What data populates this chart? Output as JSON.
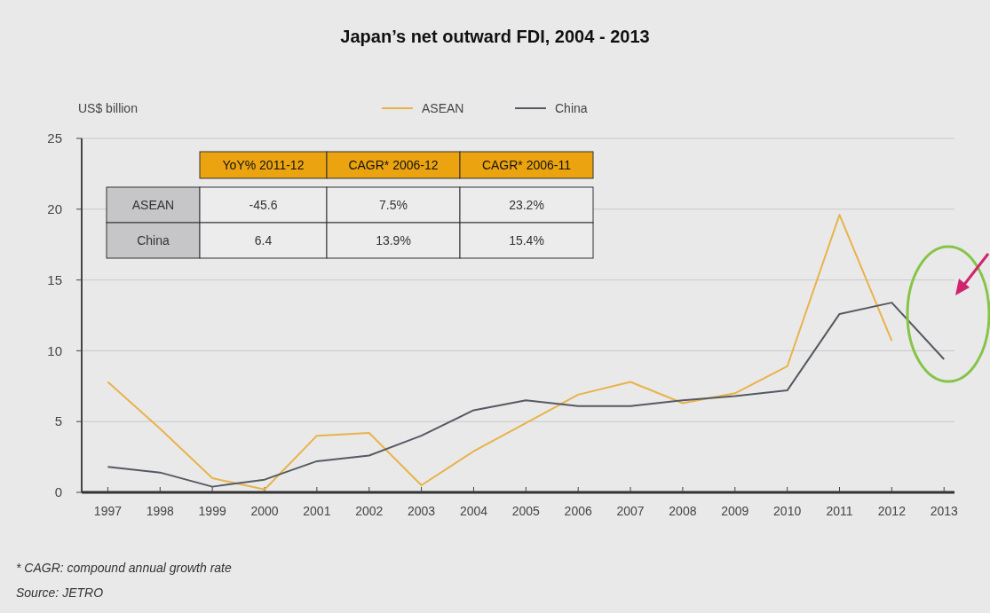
{
  "chart_data": {
    "type": "line",
    "title": "Japan’s net outward FDI,  2004 - 2013",
    "ylabel": "US$ billion",
    "x": [
      1997,
      1998,
      1999,
      2000,
      2001,
      2002,
      2003,
      2004,
      2005,
      2006,
      2007,
      2008,
      2009,
      2010,
      2011,
      2012,
      2013
    ],
    "series": [
      {
        "name": "ASEAN",
        "color": "#e8b34a",
        "values": [
          7.8,
          4.5,
          1.0,
          0.2,
          4.0,
          4.2,
          0.5,
          2.9,
          4.9,
          6.9,
          7.8,
          6.3,
          7.0,
          8.9,
          19.6,
          10.7,
          null
        ]
      },
      {
        "name": "China",
        "color": "#555a62",
        "values": [
          1.8,
          1.4,
          0.4,
          0.9,
          2.2,
          2.6,
          4.0,
          5.8,
          6.5,
          6.1,
          6.1,
          6.5,
          6.8,
          7.2,
          12.6,
          13.4,
          9.4
        ]
      }
    ],
    "xlim": [
      1996.5,
      2013.2
    ],
    "xticks": [
      1997,
      1998,
      1999,
      2000,
      2001,
      2002,
      2003,
      2004,
      2005,
      2006,
      2007,
      2008,
      2009,
      2010,
      2011,
      2012,
      2013
    ],
    "ylim": [
      0,
      25
    ],
    "yticks": [
      0,
      5,
      10,
      15,
      20,
      25
    ],
    "grid": "y",
    "legend": "top",
    "marker": "none",
    "line_style": "solid",
    "annotations": [
      "YoY% 2011-12",
      "CAGR* 2006-12",
      "CAGR* 2006-11",
      "ASEAN",
      "-45.6",
      "7.5%",
      "23.2%",
      "China",
      "6.4",
      "13.9%",
      "15.4%",
      "* CAGR: compound annual growth rate",
      "Source: JETRO"
    ]
  }
}
